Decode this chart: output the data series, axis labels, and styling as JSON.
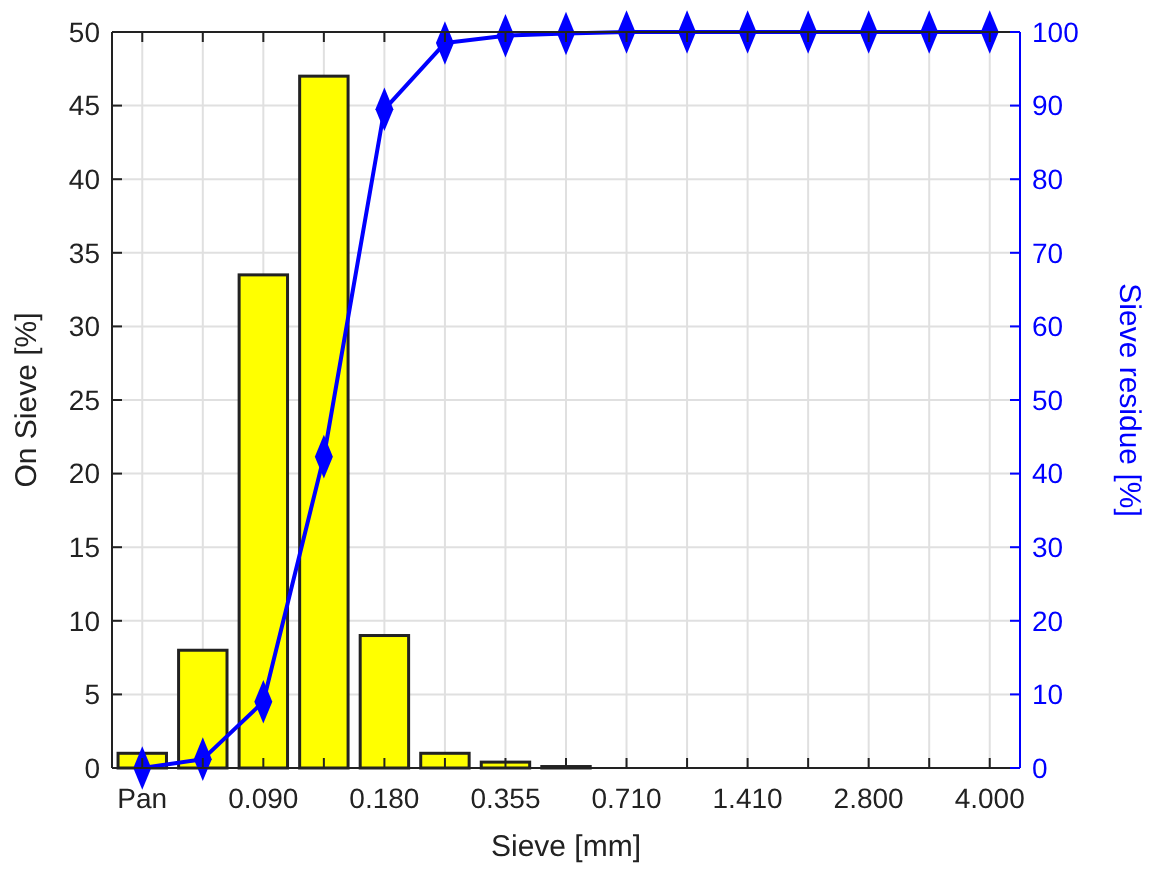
{
  "chart_data": {
    "type": "bar",
    "xlabel": "Sieve [mm]",
    "ylabel": "On Sieve [%]",
    "y2label": "Sieve residue [%]",
    "categories": [
      "Pan",
      null,
      "0.090",
      null,
      "0.180",
      null,
      "0.355",
      null,
      "0.710",
      null,
      "1.410",
      null,
      "2.800",
      null,
      "4.000"
    ],
    "series": [
      {
        "color": "#ffff00",
        "values": [
          1,
          8,
          33.5,
          47,
          9,
          1,
          0.4,
          0.1,
          0,
          0,
          0,
          0,
          0,
          0,
          0
        ]
      },
      {
        "type": "line",
        "axis": "y2",
        "color": "#0000ff",
        "marker": "diamond",
        "line_style": "solid",
        "values": [
          0,
          1.2,
          9,
          42.3,
          89.5,
          98.5,
          99.5,
          99.8,
          100,
          100,
          100,
          100,
          100,
          100,
          100
        ]
      }
    ],
    "ylim": [
      0,
      50
    ],
    "yticks": [
      0,
      5,
      10,
      15,
      20,
      25,
      30,
      35,
      40,
      45,
      50
    ],
    "y2lim": [
      0,
      100
    ],
    "y2ticks": [
      0,
      10,
      20,
      30,
      40,
      50,
      60,
      70,
      80,
      90,
      100
    ],
    "grid": true
  }
}
